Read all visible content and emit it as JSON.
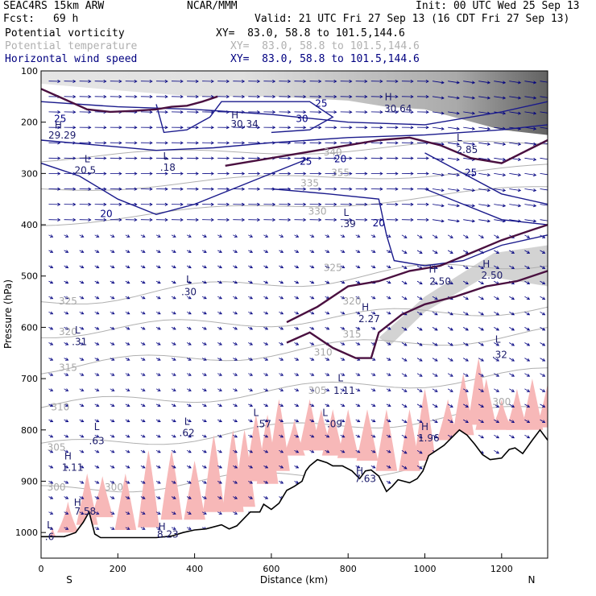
{
  "header": {
    "model": "SEAC4RS 15km ARW",
    "org": "NCAR/MMM",
    "init": "Init: 00 UTC Wed 25 Sep 13",
    "fcst_label": "Fcst:",
    "fcst_value": "69 h",
    "valid": "Valid: 21 UTC Fri 27 Sep 13 (16 CDT Fri 27 Sep 13)"
  },
  "legend": [
    {
      "name": "Potential vorticity",
      "xy": "XY=  83.0, 58.8 to 101.5,144.6",
      "color": "#000000"
    },
    {
      "name": "Potential temperature",
      "xy": "XY=  83.0, 58.8 to 101.5,144.6",
      "color": "#b0b0b0"
    },
    {
      "name": "Horizontal wind speed",
      "xy": "XY=  83.0, 58.8 to 101.5,144.6",
      "color": "#000080"
    }
  ],
  "chart_data": {
    "type": "cross-section",
    "xlabel": "Distance (km)",
    "ylabel": "Pressure (hPa)",
    "xlim": [
      0,
      1320
    ],
    "ylim": [
      1050,
      100
    ],
    "x_ticks": [
      0,
      200,
      400,
      600,
      800,
      1000,
      1200
    ],
    "y_ticks": [
      100,
      200,
      300,
      400,
      500,
      600,
      700,
      800,
      900,
      1000
    ],
    "x_end_labels": [
      "S",
      "N"
    ],
    "terrain": [
      [
        0,
        1008
      ],
      [
        30,
        1008
      ],
      [
        60,
        1008
      ],
      [
        90,
        1000
      ],
      [
        110,
        980
      ],
      [
        125,
        960
      ],
      [
        140,
        1003
      ],
      [
        155,
        1010
      ],
      [
        170,
        1010
      ],
      [
        200,
        1010
      ],
      [
        240,
        1010
      ],
      [
        300,
        1010
      ],
      [
        340,
        1007
      ],
      [
        370,
        1000
      ],
      [
        400,
        995
      ],
      [
        430,
        993
      ],
      [
        470,
        985
      ],
      [
        490,
        993
      ],
      [
        510,
        987
      ],
      [
        545,
        960
      ],
      [
        570,
        960
      ],
      [
        580,
        945
      ],
      [
        600,
        955
      ],
      [
        620,
        943
      ],
      [
        640,
        918
      ],
      [
        660,
        910
      ],
      [
        680,
        900
      ],
      [
        690,
        880
      ],
      [
        700,
        870
      ],
      [
        720,
        858
      ],
      [
        745,
        864
      ],
      [
        760,
        870
      ],
      [
        785,
        870
      ],
      [
        810,
        880
      ],
      [
        830,
        895
      ],
      [
        845,
        880
      ],
      [
        860,
        878
      ],
      [
        880,
        890
      ],
      [
        900,
        920
      ],
      [
        915,
        910
      ],
      [
        930,
        897
      ],
      [
        960,
        903
      ],
      [
        980,
        895
      ],
      [
        995,
        880
      ],
      [
        1010,
        850
      ],
      [
        1030,
        840
      ],
      [
        1050,
        830
      ],
      [
        1070,
        815
      ],
      [
        1090,
        800
      ],
      [
        1110,
        810
      ],
      [
        1130,
        828
      ],
      [
        1150,
        848
      ],
      [
        1170,
        858
      ],
      [
        1200,
        855
      ],
      [
        1220,
        838
      ],
      [
        1235,
        835
      ],
      [
        1255,
        846
      ],
      [
        1280,
        820
      ],
      [
        1300,
        800
      ],
      [
        1320,
        820
      ]
    ],
    "pv_shading_peaks": [
      [
        30,
        1010,
        990
      ],
      [
        70,
        1000,
        940
      ],
      [
        120,
        985,
        885
      ],
      [
        160,
        970,
        890
      ],
      [
        220,
        995,
        885
      ],
      [
        280,
        990,
        840
      ],
      [
        340,
        975,
        840
      ],
      [
        400,
        975,
        860
      ],
      [
        450,
        960,
        810
      ],
      [
        500,
        960,
        800
      ],
      [
        530,
        950,
        800
      ],
      [
        560,
        900,
        770
      ],
      [
        590,
        905,
        770
      ],
      [
        620,
        880,
        740
      ],
      [
        660,
        850,
        780
      ],
      [
        700,
        840,
        740
      ],
      [
        730,
        840,
        760
      ],
      [
        760,
        850,
        760
      ],
      [
        800,
        855,
        760
      ],
      [
        850,
        860,
        760
      ],
      [
        900,
        880,
        760
      ],
      [
        960,
        880,
        760
      ],
      [
        1000,
        860,
        720
      ],
      [
        1060,
        820,
        740
      ],
      [
        1100,
        810,
        690
      ],
      [
        1140,
        790,
        660
      ],
      [
        1160,
        800,
        700
      ],
      [
        1200,
        800,
        740
      ],
      [
        1240,
        800,
        720
      ],
      [
        1280,
        800,
        700
      ],
      [
        1320,
        795,
        710
      ]
    ],
    "pv_labels": [
      {
        "text": "L",
        "x": 22,
        "y": 992
      },
      {
        "text": ".6",
        "x": 22,
        "y": 1015
      },
      {
        "text": "H",
        "x": 95,
        "y": 948
      },
      {
        "text": "7.58",
        "x": 115,
        "y": 965
      },
      {
        "text": "H",
        "x": 315,
        "y": 995
      },
      {
        "text": "8.23",
        "x": 330,
        "y": 1010
      },
      {
        "text": "L",
        "x": 560,
        "y": 773
      },
      {
        "text": ".57",
        "x": 580,
        "y": 795
      },
      {
        "text": "L",
        "x": 740,
        "y": 773
      },
      {
        "text": ".09",
        "x": 765,
        "y": 795
      },
      {
        "text": "H",
        "x": 830,
        "y": 887
      },
      {
        "text": "7.63",
        "x": 845,
        "y": 902
      },
      {
        "text": "L",
        "x": 780,
        "y": 705
      },
      {
        "text": "1.11",
        "x": 790,
        "y": 730
      },
      {
        "text": "H",
        "x": 1000,
        "y": 800
      },
      {
        "text": "1.96",
        "x": 1010,
        "y": 822
      },
      {
        "text": "L",
        "x": 1190,
        "y": 630
      },
      {
        "text": ".32",
        "x": 1195,
        "y": 660
      },
      {
        "text": "H",
        "x": 70,
        "y": 858
      },
      {
        "text": "1.11",
        "x": 82,
        "y": 880
      },
      {
        "text": "L",
        "x": 145,
        "y": 800
      },
      {
        "text": ".63",
        "x": 145,
        "y": 828
      },
      {
        "text": "L",
        "x": 380,
        "y": 790
      },
      {
        "text": ".62",
        "x": 380,
        "y": 812
      },
      {
        "text": "L",
        "x": 95,
        "y": 612
      },
      {
        "text": ".31",
        "x": 100,
        "y": 635
      },
      {
        "text": "L",
        "x": 385,
        "y": 513
      },
      {
        "text": ".30",
        "x": 385,
        "y": 537
      },
      {
        "text": "L",
        "x": 120,
        "y": 278
      },
      {
        "text": "20.5",
        "x": 115,
        "y": 300
      },
      {
        "text": "H",
        "x": 45,
        "y": 212
      },
      {
        "text": "29.29",
        "x": 55,
        "y": 232
      },
      {
        "text": "H",
        "x": 505,
        "y": 193
      },
      {
        "text": "30.34",
        "x": 530,
        "y": 210
      },
      {
        "text": "L",
        "x": 325,
        "y": 273
      },
      {
        "text": ".18",
        "x": 330,
        "y": 295
      },
      {
        "text": "H",
        "x": 905,
        "y": 157
      },
      {
        "text": "30.64",
        "x": 930,
        "y": 180
      },
      {
        "text": "L",
        "x": 1090,
        "y": 237
      },
      {
        "text": "2.85",
        "x": 1110,
        "y": 260
      },
      {
        "text": "L",
        "x": 795,
        "y": 383
      },
      {
        "text": ".39",
        "x": 800,
        "y": 405
      },
      {
        "text": "H",
        "x": 1020,
        "y": 493
      },
      {
        "text": "2.50",
        "x": 1040,
        "y": 517
      },
      {
        "text": "H",
        "x": 1160,
        "y": 483
      },
      {
        "text": "2.50",
        "x": 1175,
        "y": 505
      },
      {
        "text": "H",
        "x": 845,
        "y": 567
      },
      {
        "text": "2.27",
        "x": 855,
        "y": 590
      }
    ],
    "wind_labels": [
      {
        "text": "25",
        "x": 50,
        "y": 200
      },
      {
        "text": "30",
        "x": 680,
        "y": 200
      },
      {
        "text": "25",
        "x": 690,
        "y": 283
      },
      {
        "text": "20",
        "x": 780,
        "y": 278
      },
      {
        "text": "20",
        "x": 880,
        "y": 403
      },
      {
        "text": "25",
        "x": 1120,
        "y": 305
      },
      {
        "text": "25",
        "x": 730,
        "y": 170
      },
      {
        "text": "20",
        "x": 170,
        "y": 385
      }
    ],
    "theta_labels": [
      {
        "text": "325",
        "x": 70,
        "y": 555
      },
      {
        "text": "320",
        "x": 70,
        "y": 615
      },
      {
        "text": "315",
        "x": 70,
        "y": 685
      },
      {
        "text": "310",
        "x": 50,
        "y": 762
      },
      {
        "text": "305",
        "x": 40,
        "y": 840
      },
      {
        "text": "300",
        "x": 40,
        "y": 918
      },
      {
        "text": "300",
        "x": 190,
        "y": 918
      },
      {
        "text": "305",
        "x": 720,
        "y": 730
      },
      {
        "text": "325",
        "x": 760,
        "y": 490
      },
      {
        "text": "320",
        "x": 810,
        "y": 555
      },
      {
        "text": "315",
        "x": 810,
        "y": 620
      },
      {
        "text": "310",
        "x": 735,
        "y": 655
      },
      {
        "text": "330",
        "x": 720,
        "y": 380
      },
      {
        "text": "335",
        "x": 700,
        "y": 325
      },
      {
        "text": "355",
        "x": 780,
        "y": 305
      },
      {
        "text": "340",
        "x": 760,
        "y": 265
      },
      {
        "text": "300",
        "x": 1200,
        "y": 752
      }
    ]
  }
}
